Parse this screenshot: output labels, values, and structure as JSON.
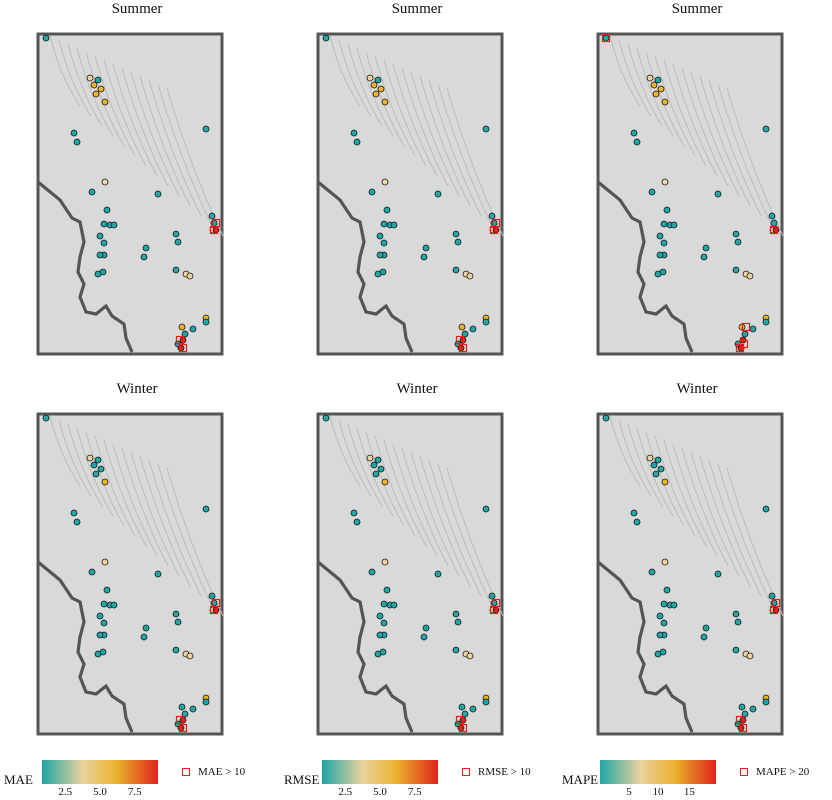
{
  "panels": [
    {
      "title": "Summer",
      "metric": "MAE"
    },
    {
      "title": "Summer",
      "metric": "RMSE"
    },
    {
      "title": "Summer",
      "metric": "MAPE"
    },
    {
      "title": "Winter",
      "metric": "MAE"
    },
    {
      "title": "Winter",
      "metric": "RMSE"
    },
    {
      "title": "Winter",
      "metric": "MAPE"
    }
  ],
  "legends": [
    {
      "name": "MAE",
      "ticks": [
        "2.5",
        "5.0",
        "7.5"
      ],
      "flag_label": "MAE > 10"
    },
    {
      "name": "RMSE",
      "ticks": [
        "2.5",
        "5.0",
        "7.5"
      ],
      "flag_label": "RMSE > 10"
    },
    {
      "name": "MAPE",
      "ticks": [
        "5",
        "10",
        "15"
      ],
      "flag_label": "MAPE > 20"
    }
  ],
  "colors": {
    "low": "#1fa6a5",
    "mid": "#ead39e",
    "high_mid": "#eab12b",
    "high": "#e0221b",
    "basemap": "#d9d9d9",
    "border": "#555555"
  }
}
